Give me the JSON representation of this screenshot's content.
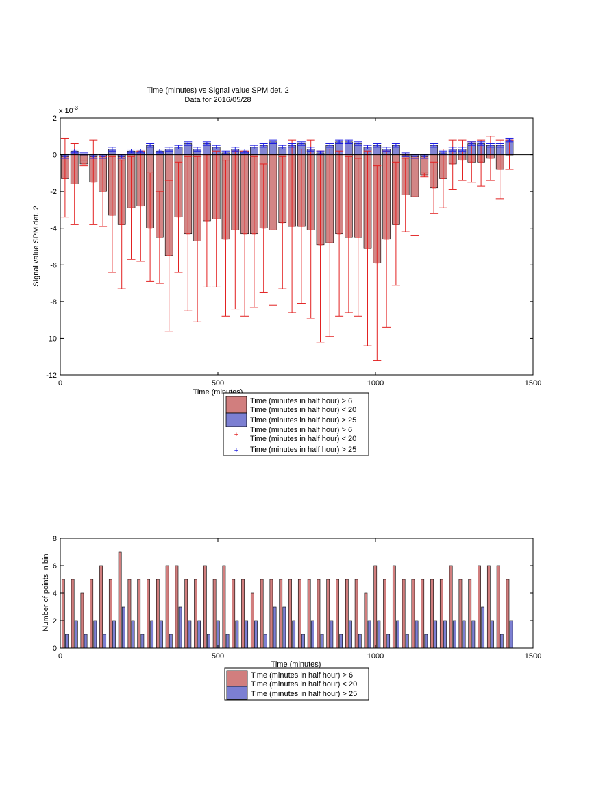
{
  "chart_data": [
    {
      "type": "bar",
      "title": "Time (minutes) vs Signal value SPM det. 2",
      "subtitle": "Data for 2016/05/28",
      "xlabel": "Time (minutes)",
      "ylabel": "Signal value SPM det. 2",
      "y_exponent_label": "x 10",
      "y_exponent_power": "-3",
      "xlim": [
        0,
        1500
      ],
      "ylim": [
        -12,
        2
      ],
      "xticks": [
        "0",
        "500",
        "1000",
        "1500"
      ],
      "yticks": [
        "2",
        "0",
        "-2",
        "-4",
        "-6",
        "-8",
        "-10",
        "-12"
      ],
      "ytick_values": [
        2,
        0,
        -2,
        -4,
        -6,
        -8,
        -10,
        -12
      ],
      "xtick_values": [
        0,
        500,
        1000,
        1500
      ],
      "grid": false,
      "legend_position": "below",
      "legend": [
        "Time (minutes in half hour) > 6",
        "Time (minutes in half hour) < 20",
        "Time (minutes in half hour) > 25",
        "Time (minutes in half hour) > 6",
        "Time (minutes in half hour) < 20",
        "Time (minutes in half hour) > 25"
      ],
      "colors": {
        "red_bar": "#d17e7e",
        "blue_bar": "#7c7fd2",
        "red_err": "#e22222",
        "blue_err": "#1c1ce0"
      },
      "x": [
        15,
        45,
        75,
        105,
        135,
        165,
        195,
        225,
        255,
        285,
        315,
        345,
        375,
        405,
        435,
        465,
        495,
        525,
        555,
        585,
        615,
        645,
        675,
        705,
        735,
        765,
        795,
        825,
        855,
        885,
        915,
        945,
        975,
        1005,
        1035,
        1065,
        1095,
        1125,
        1155,
        1185,
        1215,
        1245,
        1275,
        1305,
        1335,
        1365,
        1395,
        1425
      ],
      "series": [
        {
          "name": "Time (minutes in half hour) > 6  Time (minutes in half hour) < 20",
          "values": [
            -1.3,
            -1.6,
            -0.5,
            -1.5,
            -2.0,
            -3.3,
            -3.8,
            -2.9,
            -2.8,
            -4.0,
            -4.5,
            -5.5,
            -3.4,
            -4.3,
            -4.7,
            -3.6,
            -3.5,
            -4.6,
            -4.1,
            -4.3,
            -4.3,
            -4.0,
            -4.1,
            -3.7,
            -3.9,
            -3.9,
            -4.1,
            -4.9,
            -4.8,
            -4.3,
            -4.5,
            -4.5,
            -5.1,
            -5.9,
            -4.6,
            -3.8,
            -2.2,
            -2.3,
            -1.1,
            -1.8,
            -1.3,
            -0.5,
            -0.3,
            -0.4,
            -0.4,
            -0.2,
            -0.8,
            0.0
          ],
          "err_low": [
            -3.4,
            -3.8,
            -0.6,
            -3.8,
            -3.9,
            -6.4,
            -7.3,
            -5.7,
            -5.8,
            -6.9,
            -7.0,
            -9.6,
            -6.4,
            -8.5,
            -9.1,
            -7.2,
            -7.2,
            -8.8,
            -8.4,
            -8.8,
            -8.3,
            -7.5,
            -8.2,
            -7.3,
            -8.6,
            -8.1,
            -8.9,
            -10.2,
            -9.9,
            -8.8,
            -8.6,
            -8.8,
            -10.4,
            -11.2,
            -9.4,
            -7.1,
            -4.2,
            -4.4,
            -1.2,
            -3.2,
            -2.9,
            -1.9,
            -1.4,
            -1.5,
            -1.7,
            -1.4,
            -2.4,
            -0.8
          ],
          "err_high": [
            0.9,
            0.6,
            -0.3,
            0.8,
            -0.1,
            -0.1,
            -0.3,
            -0.1,
            0.2,
            -1.0,
            -2.0,
            -1.4,
            -0.4,
            -0.1,
            -0.1,
            0.0,
            0.2,
            -0.3,
            0.2,
            0.2,
            -0.1,
            -0.5,
            0.0,
            -0.1,
            0.8,
            0.3,
            0.8,
            0.2,
            0.3,
            0.2,
            -0.1,
            -0.2,
            0.2,
            -0.6,
            0.2,
            -0.4,
            -0.2,
            -0.2,
            -1.0,
            -0.4,
            0.3,
            0.8,
            0.8,
            0.7,
            0.8,
            1.0,
            0.8,
            0.8
          ]
        },
        {
          "name": "Time (minutes in half hour) > 25",
          "values": [
            -0.1,
            0.2,
            0.0,
            -0.1,
            -0.1,
            0.3,
            -0.1,
            0.2,
            0.2,
            0.5,
            0.2,
            0.3,
            0.4,
            0.6,
            0.3,
            0.6,
            0.4,
            0.1,
            0.3,
            0.2,
            0.4,
            0.5,
            0.7,
            0.4,
            0.5,
            0.6,
            0.3,
            0.1,
            0.5,
            0.7,
            0.7,
            0.6,
            0.4,
            0.5,
            0.3,
            0.5,
            0.0,
            -0.1,
            -0.1,
            0.5,
            0.1,
            0.3,
            0.3,
            0.6,
            0.6,
            0.5,
            0.5,
            0.8
          ],
          "err_low": [
            -0.2,
            0.1,
            0.0,
            -0.2,
            -0.2,
            0.2,
            -0.2,
            0.1,
            0.1,
            0.4,
            0.1,
            0.2,
            0.3,
            0.5,
            0.2,
            0.5,
            0.3,
            0.0,
            0.2,
            0.1,
            0.3,
            0.4,
            0.6,
            0.3,
            0.4,
            0.5,
            0.2,
            0.0,
            0.4,
            0.6,
            0.6,
            0.5,
            0.3,
            0.4,
            0.2,
            0.4,
            -0.1,
            -0.2,
            -0.2,
            0.4,
            0.0,
            0.2,
            0.2,
            0.5,
            0.5,
            0.4,
            0.4,
            0.7
          ],
          "err_high": [
            0.0,
            0.3,
            0.1,
            0.0,
            0.0,
            0.4,
            0.0,
            0.3,
            0.3,
            0.6,
            0.3,
            0.4,
            0.5,
            0.7,
            0.4,
            0.7,
            0.5,
            0.2,
            0.4,
            0.3,
            0.5,
            0.6,
            0.8,
            0.5,
            0.6,
            0.7,
            0.4,
            0.2,
            0.6,
            0.8,
            0.8,
            0.7,
            0.5,
            0.6,
            0.4,
            0.6,
            0.1,
            0.0,
            0.0,
            0.6,
            0.2,
            0.4,
            0.4,
            0.7,
            0.7,
            0.6,
            0.6,
            0.9
          ]
        }
      ]
    },
    {
      "type": "bar",
      "xlabel": "Time (minutes)",
      "ylabel": "Number of points in bin",
      "xlim": [
        0,
        1500
      ],
      "ylim": [
        0,
        8
      ],
      "xticks": [
        "0",
        "500",
        "1000",
        "1500"
      ],
      "xtick_values": [
        0,
        500,
        1000,
        1500
      ],
      "yticks": [
        "8",
        "6",
        "4",
        "2",
        "0"
      ],
      "ytick_values": [
        8,
        6,
        4,
        2,
        0
      ],
      "grid": false,
      "legend_position": "below",
      "legend": [
        "Time (minutes in half hour) > 6",
        "Time (minutes in half hour) < 20",
        "Time (minutes in half hour) > 25"
      ],
      "colors": {
        "red_bar": "#d17e7e",
        "blue_bar": "#7c7fd2"
      },
      "x": [
        15,
        45,
        75,
        105,
        135,
        165,
        195,
        225,
        255,
        285,
        315,
        345,
        375,
        405,
        435,
        465,
        495,
        525,
        555,
        585,
        615,
        645,
        675,
        705,
        735,
        765,
        795,
        825,
        855,
        885,
        915,
        945,
        975,
        1005,
        1035,
        1065,
        1095,
        1125,
        1155,
        1185,
        1215,
        1245,
        1275,
        1305,
        1335,
        1365,
        1395,
        1425
      ],
      "series": [
        {
          "name": "Time (minutes in half hour) > 6  Time (minutes in half hour) < 20",
          "values": [
            5,
            5,
            4,
            5,
            6,
            5,
            7,
            5,
            5,
            5,
            5,
            6,
            6,
            5,
            5,
            6,
            5,
            6,
            5,
            5,
            4,
            5,
            5,
            5,
            5,
            5,
            5,
            5,
            5,
            5,
            5,
            5,
            4,
            6,
            5,
            6,
            5,
            5,
            5,
            5,
            5,
            6,
            5,
            5,
            6,
            6,
            6,
            5
          ]
        },
        {
          "name": "Time (minutes in half hour) > 25",
          "values": [
            1,
            2,
            1,
            2,
            1,
            2,
            3,
            2,
            1,
            2,
            2,
            1,
            3,
            2,
            2,
            1,
            2,
            1,
            2,
            2,
            2,
            1,
            3,
            3,
            2,
            1,
            2,
            1,
            2,
            1,
            2,
            1,
            2,
            2,
            1,
            2,
            1,
            2,
            1,
            2,
            2,
            2,
            2,
            2,
            3,
            2,
            1,
            2
          ]
        }
      ]
    }
  ]
}
